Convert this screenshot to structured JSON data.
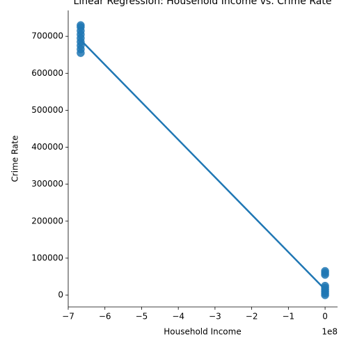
{
  "chart_data": {
    "type": "scatter",
    "title": "Linear Regression: Household Income vs. Crime Rate",
    "xlabel": "Household Income",
    "ylabel": "Crime Rate",
    "x_offset_label": "1e8",
    "color": "#1f77b4",
    "x": [
      -6.66,
      -6.66,
      -6.66,
      -6.66,
      -6.66,
      -6.66,
      -6.66,
      -6.66,
      -6.66,
      0,
      0,
      0,
      0,
      0,
      0,
      0,
      0,
      0
    ],
    "y": [
      655000,
      665000,
      675000,
      685000,
      695000,
      705000,
      715000,
      725000,
      730000,
      0,
      5000,
      10000,
      15000,
      20000,
      25000,
      55000,
      60000,
      65000
    ],
    "regression": {
      "x": [
        -6.66,
        0
      ],
      "y": [
        690000,
        15000
      ]
    },
    "xlim": [
      -7.0,
      0.34
    ],
    "ylim": [
      -32000,
      770000
    ],
    "xticks": [
      {
        "value": -7,
        "label": "−7"
      },
      {
        "value": -6,
        "label": "−6"
      },
      {
        "value": -5,
        "label": "−5"
      },
      {
        "value": -4,
        "label": "−4"
      },
      {
        "value": -3,
        "label": "−3"
      },
      {
        "value": -2,
        "label": "−2"
      },
      {
        "value": -1,
        "label": "−1"
      },
      0
    ],
    "yticks": [
      0,
      100000,
      200000,
      300000,
      400000,
      500000,
      600000,
      700000
    ]
  }
}
